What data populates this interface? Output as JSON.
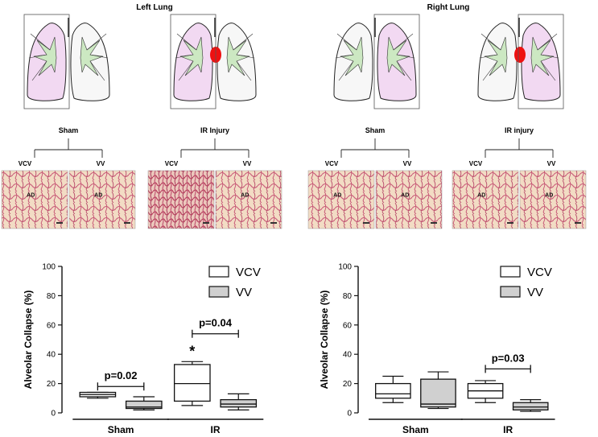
{
  "panels": [
    {
      "title": "Left Lung",
      "groups": [
        {
          "label": "Sham",
          "images": [
            {
              "branch": "VCV",
              "ad": "AD"
            },
            {
              "branch": "VV",
              "ad": "AD"
            }
          ]
        },
        {
          "label": "IR Injury",
          "images": [
            {
              "branch": "VCV",
              "ad": ""
            },
            {
              "branch": "VV",
              "ad": "AD"
            }
          ]
        }
      ]
    },
    {
      "title": "Right Lung",
      "groups": [
        {
          "label": "Sham",
          "images": [
            {
              "branch": "VCV",
              "ad": "AD"
            },
            {
              "branch": "VV",
              "ad": "AD"
            }
          ]
        },
        {
          "label": "IR injury",
          "images": [
            {
              "branch": "VCV",
              "ad": "AD"
            },
            {
              "branch": "VV",
              "ad": "AD"
            }
          ]
        }
      ]
    }
  ],
  "colors": {
    "lung_highlight": "#f2d9f2",
    "airway": "#cce8c2",
    "injury_spot": "#ee1111",
    "histology_bg": "#f2dcc4",
    "histology_tissue": "#c85a78",
    "box_vv_fill": "#d0d0d0"
  },
  "chart_data": [
    {
      "type": "boxplot",
      "ylabel": "Alveolar Collapse (%)",
      "ylim": [
        0,
        100
      ],
      "yticks": [
        "0",
        "20",
        "40",
        "60",
        "80",
        "100"
      ],
      "groups": [
        "Sham",
        "IR"
      ],
      "legend": {
        "position": "top-right",
        "entries": [
          {
            "label": "VCV",
            "fill": "#ffffff"
          },
          {
            "label": "VV",
            "fill": "#d0d0d0"
          }
        ]
      },
      "boxes": [
        {
          "group": "Sham",
          "series": "VCV",
          "min": 10,
          "q1": 11,
          "median": 12.5,
          "q3": 14,
          "max": 14
        },
        {
          "group": "Sham",
          "series": "VV",
          "min": 2,
          "q1": 3,
          "median": 4,
          "q3": 8,
          "max": 11
        },
        {
          "group": "IR",
          "series": "VCV",
          "min": 5,
          "q1": 8,
          "median": 20,
          "q3": 33,
          "max": 35
        },
        {
          "group": "IR",
          "series": "VV",
          "min": 2,
          "q1": 4,
          "median": 6,
          "q3": 9,
          "max": 13
        }
      ],
      "annotations": [
        {
          "text": "p=0.02",
          "group": "Sham",
          "bracket_y": 18
        },
        {
          "text": "p=0.04",
          "group": "IR",
          "bracket_y": 54
        },
        {
          "text": "*",
          "group": "IR",
          "series": "VCV",
          "y": 42
        }
      ]
    },
    {
      "type": "boxplot",
      "ylabel": "Alveolar Collapse (%)",
      "ylim": [
        0,
        100
      ],
      "yticks": [
        "0",
        "20",
        "40",
        "60",
        "80",
        "100"
      ],
      "groups": [
        "Sham",
        "IR"
      ],
      "legend": {
        "position": "top-right",
        "entries": [
          {
            "label": "VCV",
            "fill": "#ffffff"
          },
          {
            "label": "VV",
            "fill": "#d0d0d0"
          }
        ]
      },
      "boxes": [
        {
          "group": "Sham",
          "series": "VCV",
          "min": 7,
          "q1": 10,
          "median": 13,
          "q3": 20,
          "max": 25
        },
        {
          "group": "Sham",
          "series": "VV",
          "min": 3,
          "q1": 4,
          "median": 6,
          "q3": 23,
          "max": 28
        },
        {
          "group": "IR",
          "series": "VCV",
          "min": 7,
          "q1": 10,
          "median": 15,
          "q3": 20,
          "max": 22
        },
        {
          "group": "IR",
          "series": "VV",
          "min": 1,
          "q1": 2,
          "median": 4,
          "q3": 7,
          "max": 9
        }
      ],
      "annotations": [
        {
          "text": "p=0.03",
          "group": "IR",
          "bracket_y": 30
        }
      ]
    }
  ]
}
